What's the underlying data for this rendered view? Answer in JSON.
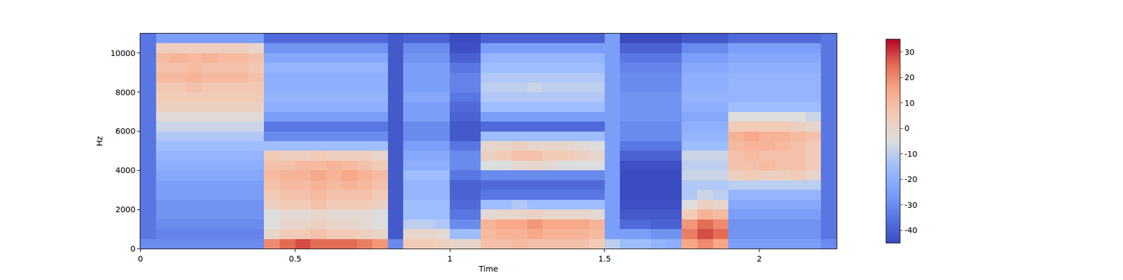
{
  "chart_data": {
    "type": "heatmap",
    "xlabel": "Time",
    "ylabel": "Hz",
    "xlim": [
      0,
      2.25
    ],
    "xticks": [
      0,
      0.5,
      1,
      1.5,
      2
    ],
    "ylim": [
      0,
      11000
    ],
    "yticks": [
      0,
      2000,
      4000,
      6000,
      8000,
      10000
    ],
    "colorbar": {
      "range": [
        -45,
        35
      ],
      "ticks": [
        -40,
        -30,
        -20,
        -10,
        0,
        10,
        20,
        30
      ]
    },
    "x": [
      0.025,
      0.075,
      0.125,
      0.175,
      0.225,
      0.275,
      0.325,
      0.375,
      0.425,
      0.475,
      0.525,
      0.575,
      0.625,
      0.675,
      0.725,
      0.775,
      0.825,
      0.875,
      0.925,
      0.975,
      1.025,
      1.075,
      1.125,
      1.175,
      1.225,
      1.275,
      1.325,
      1.375,
      1.425,
      1.475,
      1.525,
      1.575,
      1.625,
      1.675,
      1.725,
      1.775,
      1.825,
      1.875,
      1.925,
      1.975,
      2.025,
      2.075,
      2.125,
      2.175,
      2.225
    ],
    "y": [
      250,
      750,
      1250,
      1750,
      2250,
      2750,
      3250,
      3750,
      4250,
      4750,
      5250,
      5750,
      6250,
      6750,
      7250,
      7750,
      8250,
      8750,
      9250,
      9750,
      10250,
      10750
    ],
    "z": [
      [
        -30,
        -30,
        -30,
        -30,
        -30,
        -30,
        -30,
        -30,
        20,
        25,
        28,
        25,
        25,
        25,
        22,
        18,
        -30,
        5,
        5,
        3,
        0,
        0,
        8,
        8,
        10,
        8,
        8,
        8,
        8,
        5,
        -10,
        -15,
        -15,
        -18,
        -20,
        15,
        20,
        15,
        -25,
        -25,
        -25,
        -25,
        -25,
        -25,
        -30
      ],
      [
        -35,
        -32,
        -32,
        -32,
        -32,
        -32,
        -32,
        -32,
        0,
        5,
        5,
        8,
        5,
        5,
        3,
        0,
        -42,
        0,
        0,
        -2,
        -15,
        -15,
        10,
        12,
        12,
        15,
        12,
        12,
        12,
        10,
        -25,
        -25,
        -25,
        -28,
        -28,
        22,
        28,
        25,
        -28,
        -28,
        -28,
        -28,
        -28,
        -28,
        -35
      ],
      [
        -35,
        -30,
        -30,
        -30,
        -30,
        -30,
        -30,
        -30,
        -5,
        0,
        0,
        2,
        0,
        0,
        -2,
        -5,
        -42,
        -10,
        -10,
        -12,
        -30,
        -30,
        12,
        15,
        15,
        18,
        15,
        15,
        15,
        12,
        -25,
        -38,
        -38,
        -40,
        -40,
        18,
        25,
        20,
        -28,
        -28,
        -28,
        -28,
        -28,
        -28,
        -35
      ],
      [
        -35,
        -28,
        -28,
        -28,
        -28,
        -28,
        -28,
        -28,
        -5,
        -2,
        -2,
        0,
        -2,
        -2,
        -2,
        -5,
        -42,
        -15,
        -15,
        -15,
        -35,
        -35,
        -2,
        0,
        0,
        2,
        0,
        0,
        0,
        -2,
        -25,
        -42,
        -42,
        -42,
        -42,
        5,
        12,
        10,
        -25,
        -25,
        -25,
        -25,
        -25,
        -25,
        -35
      ],
      [
        -35,
        -28,
        -28,
        -28,
        -28,
        -28,
        -28,
        -28,
        2,
        5,
        5,
        8,
        5,
        5,
        5,
        2,
        -42,
        -15,
        -15,
        -15,
        -38,
        -38,
        -15,
        -15,
        -12,
        -15,
        -15,
        -15,
        -15,
        -15,
        -25,
        -44,
        -44,
        -44,
        -44,
        -5,
        2,
        0,
        -22,
        -22,
        -22,
        -22,
        -22,
        -22,
        -35
      ],
      [
        -35,
        -25,
        -25,
        -25,
        -25,
        -25,
        -25,
        -25,
        5,
        8,
        8,
        10,
        8,
        8,
        8,
        5,
        -42,
        -18,
        -18,
        -18,
        -40,
        -40,
        -35,
        -35,
        -35,
        -35,
        -35,
        -35,
        -35,
        -35,
        -25,
        -45,
        -45,
        -45,
        -45,
        -12,
        -8,
        -10,
        -18,
        -18,
        -18,
        -18,
        -18,
        -18,
        -35
      ],
      [
        -35,
        -25,
        -25,
        -25,
        -25,
        -25,
        -25,
        -25,
        8,
        10,
        10,
        12,
        10,
        12,
        10,
        8,
        -42,
        -18,
        -18,
        -18,
        -40,
        -40,
        -38,
        -38,
        -38,
        -38,
        -38,
        -38,
        -38,
        -38,
        -25,
        -45,
        -45,
        -45,
        -45,
        -12,
        -12,
        -12,
        -10,
        -10,
        -10,
        -10,
        -10,
        -10,
        -35
      ],
      [
        -35,
        -22,
        -22,
        -22,
        -22,
        -22,
        -22,
        -22,
        10,
        12,
        12,
        15,
        12,
        15,
        12,
        10,
        -42,
        -15,
        -15,
        -15,
        -35,
        -35,
        -30,
        -30,
        -30,
        -30,
        -30,
        -30,
        -30,
        -30,
        -25,
        -45,
        -45,
        -45,
        -45,
        -8,
        -8,
        -8,
        3,
        5,
        3,
        3,
        5,
        0,
        -35
      ],
      [
        -35,
        -20,
        -20,
        -20,
        -20,
        -20,
        -20,
        -20,
        8,
        8,
        10,
        10,
        12,
        10,
        8,
        5,
        -42,
        -20,
        -20,
        -20,
        -30,
        -30,
        -5,
        -5,
        -2,
        0,
        -2,
        -5,
        -5,
        -5,
        -25,
        -44,
        -44,
        -44,
        -44,
        -10,
        -10,
        -10,
        8,
        8,
        10,
        8,
        8,
        5,
        -35
      ],
      [
        -35,
        -18,
        -18,
        -18,
        -18,
        -18,
        -18,
        -18,
        5,
        3,
        3,
        5,
        3,
        3,
        3,
        0,
        -42,
        -22,
        -22,
        -22,
        -30,
        -30,
        2,
        5,
        8,
        8,
        5,
        5,
        2,
        0,
        -25,
        -40,
        -40,
        -40,
        -40,
        -8,
        -8,
        -8,
        8,
        10,
        8,
        8,
        8,
        5,
        -35
      ],
      [
        -35,
        -15,
        -15,
        -15,
        -15,
        -15,
        -15,
        -15,
        -15,
        -15,
        -15,
        -15,
        -15,
        -15,
        -15,
        -15,
        -42,
        -25,
        -25,
        -25,
        -35,
        -35,
        0,
        0,
        2,
        0,
        0,
        0,
        -2,
        -5,
        -25,
        -35,
        -35,
        -35,
        -35,
        -15,
        -15,
        -15,
        10,
        12,
        12,
        10,
        8,
        5,
        -35
      ],
      [
        -35,
        -12,
        -12,
        -12,
        -12,
        -12,
        -12,
        -12,
        -30,
        -30,
        -30,
        -30,
        -30,
        -30,
        -30,
        -30,
        -42,
        -30,
        -30,
        -30,
        -42,
        -42,
        -15,
        -15,
        -15,
        -15,
        -15,
        -15,
        -15,
        -15,
        -25,
        -30,
        -30,
        -30,
        -30,
        -18,
        -18,
        -18,
        12,
        15,
        12,
        12,
        10,
        8,
        -35
      ],
      [
        -35,
        -8,
        -8,
        -8,
        -8,
        -8,
        -8,
        -8,
        -35,
        -35,
        -35,
        -35,
        -35,
        -35,
        -35,
        -35,
        -42,
        -30,
        -30,
        -30,
        -42,
        -42,
        -38,
        -38,
        -38,
        -38,
        -38,
        -38,
        -38,
        -38,
        -25,
        -30,
        -30,
        -30,
        -30,
        -20,
        -20,
        -20,
        5,
        5,
        5,
        5,
        2,
        0,
        -35
      ],
      [
        -35,
        -3,
        -3,
        -3,
        -3,
        -3,
        -3,
        -3,
        -25,
        -25,
        -25,
        -25,
        -25,
        -25,
        -25,
        -25,
        -42,
        -25,
        -25,
        -25,
        -40,
        -40,
        -25,
        -25,
        -25,
        -25,
        -25,
        -25,
        -25,
        -25,
        -25,
        -28,
        -28,
        -28,
        -28,
        -22,
        -22,
        -22,
        -5,
        -5,
        -5,
        -5,
        -5,
        -8,
        -35
      ],
      [
        -35,
        2,
        2,
        2,
        2,
        2,
        2,
        2,
        -20,
        -20,
        -20,
        -20,
        -20,
        -20,
        -20,
        -20,
        -42,
        -25,
        -25,
        -25,
        -38,
        -38,
        -15,
        -15,
        -15,
        -15,
        -15,
        -15,
        -15,
        -15,
        -25,
        -28,
        -28,
        -28,
        -28,
        -20,
        -20,
        -20,
        -15,
        -15,
        -15,
        -15,
        -15,
        -15,
        -35
      ],
      [
        -35,
        5,
        5,
        5,
        5,
        5,
        5,
        5,
        -18,
        -18,
        -18,
        -18,
        -18,
        -18,
        -18,
        -18,
        -42,
        -22,
        -22,
        -22,
        -35,
        -35,
        -12,
        -12,
        -12,
        -12,
        -12,
        -12,
        -12,
        -12,
        -25,
        -28,
        -28,
        -28,
        -28,
        -18,
        -18,
        -18,
        -18,
        -18,
        -18,
        -18,
        -18,
        -18,
        -35
      ],
      [
        -35,
        6,
        6,
        8,
        6,
        6,
        6,
        6,
        -20,
        -20,
        -20,
        -20,
        -20,
        -20,
        -20,
        -20,
        -42,
        -25,
        -25,
        -25,
        -32,
        -32,
        -10,
        -10,
        -10,
        -8,
        -10,
        -10,
        -10,
        -10,
        -25,
        -30,
        -30,
        -30,
        -30,
        -20,
        -20,
        -20,
        -18,
        -18,
        -18,
        -18,
        -18,
        -18,
        -35
      ],
      [
        -35,
        10,
        10,
        12,
        10,
        10,
        10,
        8,
        -20,
        -20,
        -20,
        -20,
        -20,
        -20,
        -20,
        -20,
        -42,
        -25,
        -25,
        -25,
        -32,
        -32,
        -12,
        -12,
        -12,
        -12,
        -12,
        -12,
        -12,
        -12,
        -25,
        -30,
        -30,
        -30,
        -30,
        -20,
        -20,
        -20,
        -18,
        -18,
        -18,
        -18,
        -18,
        -18,
        -35
      ],
      [
        -35,
        8,
        8,
        10,
        8,
        8,
        8,
        6,
        -18,
        -18,
        -18,
        -18,
        -18,
        -18,
        -18,
        -18,
        -42,
        -25,
        -25,
        -25,
        -35,
        -35,
        -15,
        -15,
        -15,
        -15,
        -15,
        -15,
        -15,
        -15,
        -25,
        -32,
        -32,
        -32,
        -32,
        -22,
        -22,
        -22,
        -20,
        -20,
        -20,
        -20,
        -20,
        -20,
        -35
      ],
      [
        -35,
        10,
        12,
        10,
        12,
        10,
        10,
        8,
        -22,
        -22,
        -22,
        -22,
        -22,
        -22,
        -22,
        -22,
        -42,
        -28,
        -28,
        -28,
        -40,
        -40,
        -18,
        -18,
        -18,
        -18,
        -18,
        -18,
        -18,
        -18,
        -25,
        -35,
        -35,
        -35,
        -35,
        -25,
        -25,
        -25,
        -22,
        -22,
        -22,
        -22,
        -22,
        -22,
        -35
      ],
      [
        -35,
        3,
        3,
        3,
        3,
        3,
        3,
        0,
        -28,
        -28,
        -28,
        -28,
        -28,
        -28,
        -28,
        -28,
        -42,
        -30,
        -30,
        -30,
        -44,
        -44,
        -25,
        -25,
        -25,
        -25,
        -25,
        -25,
        -25,
        -25,
        -25,
        -40,
        -40,
        -40,
        -40,
        -30,
        -30,
        -30,
        -25,
        -25,
        -25,
        -25,
        -25,
        -25,
        -35
      ],
      [
        -35,
        -25,
        -25,
        -25,
        -25,
        -25,
        -25,
        -25,
        -38,
        -38,
        -38,
        -38,
        -38,
        -38,
        -38,
        -38,
        -42,
        -40,
        -40,
        -40,
        -45,
        -45,
        -40,
        -40,
        -40,
        -40,
        -40,
        -40,
        -40,
        -40,
        -25,
        -45,
        -45,
        -45,
        -45,
        -42,
        -42,
        -42,
        -38,
        -38,
        -38,
        -38,
        -38,
        -38,
        -35
      ]
    ]
  }
}
